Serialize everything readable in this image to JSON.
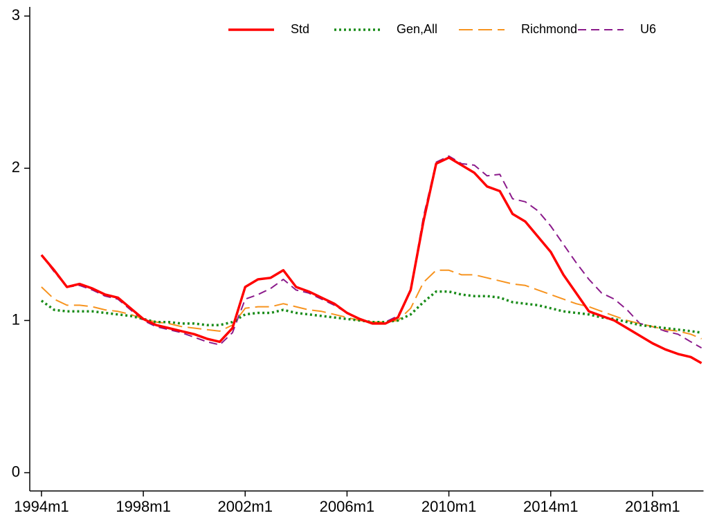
{
  "chart_data": {
    "type": "line",
    "x": [
      1994,
      1994.5,
      1995,
      1995.5,
      1996,
      1996.5,
      1997,
      1997.5,
      1998,
      1998.5,
      1999,
      1999.5,
      2000,
      2000.5,
      2001,
      2001.5,
      2002,
      2002.5,
      2003,
      2003.5,
      2004,
      2004.5,
      2005,
      2005.5,
      2006,
      2006.5,
      2007,
      2007.5,
      2008,
      2008.5,
      2009,
      2009.5,
      2010,
      2010.5,
      2011,
      2011.5,
      2012,
      2012.5,
      2013,
      2013.5,
      2014,
      2014.5,
      2015,
      2015.5,
      2016,
      2016.5,
      2017,
      2017.5,
      2018,
      2018.5,
      2019,
      2019.5,
      2019.92
    ],
    "series": [
      {
        "name": "Std",
        "color": "#ff0000",
        "style": "solid",
        "values": [
          1.43,
          1.33,
          1.22,
          1.24,
          1.21,
          1.17,
          1.15,
          1.08,
          1.01,
          0.97,
          0.95,
          0.93,
          0.91,
          0.88,
          0.86,
          0.95,
          1.22,
          1.27,
          1.28,
          1.33,
          1.22,
          1.19,
          1.15,
          1.11,
          1.05,
          1.01,
          0.98,
          0.98,
          1.02,
          1.2,
          1.65,
          2.03,
          2.07,
          2.02,
          1.97,
          1.88,
          1.85,
          1.7,
          1.65,
          1.55,
          1.45,
          1.3,
          1.18,
          1.06,
          1.03,
          1.0,
          0.95,
          0.9,
          0.85,
          0.81,
          0.78,
          0.76,
          0.72
        ]
      },
      {
        "name": "Gen,All",
        "color": "#1a8c1a",
        "style": "dotted",
        "values": [
          1.13,
          1.07,
          1.06,
          1.06,
          1.06,
          1.05,
          1.04,
          1.03,
          1.01,
          0.99,
          0.99,
          0.98,
          0.98,
          0.97,
          0.97,
          0.99,
          1.04,
          1.05,
          1.05,
          1.07,
          1.05,
          1.04,
          1.03,
          1.02,
          1.01,
          1.0,
          0.99,
          0.99,
          1.0,
          1.04,
          1.12,
          1.19,
          1.19,
          1.17,
          1.16,
          1.16,
          1.15,
          1.12,
          1.11,
          1.1,
          1.08,
          1.06,
          1.05,
          1.04,
          1.02,
          1.01,
          0.99,
          0.97,
          0.96,
          0.95,
          0.94,
          0.93,
          0.92
        ]
      },
      {
        "name": "Richmond",
        "color": "#f7931e",
        "style": "longdash",
        "values": [
          1.22,
          1.14,
          1.1,
          1.1,
          1.09,
          1.07,
          1.06,
          1.04,
          1.01,
          0.99,
          0.98,
          0.96,
          0.95,
          0.94,
          0.93,
          0.97,
          1.08,
          1.09,
          1.09,
          1.11,
          1.09,
          1.07,
          1.06,
          1.04,
          1.02,
          1.0,
          0.99,
          0.99,
          1.0,
          1.08,
          1.25,
          1.33,
          1.33,
          1.3,
          1.3,
          1.28,
          1.26,
          1.24,
          1.23,
          1.2,
          1.17,
          1.14,
          1.11,
          1.09,
          1.06,
          1.03,
          1.0,
          0.98,
          0.96,
          0.94,
          0.93,
          0.91,
          0.88
        ]
      },
      {
        "name": "U6",
        "color": "#8b1a8b",
        "style": "dashed",
        "values": [
          1.43,
          1.32,
          1.22,
          1.23,
          1.2,
          1.16,
          1.14,
          1.07,
          1.0,
          0.96,
          0.94,
          0.92,
          0.89,
          0.86,
          0.84,
          0.92,
          1.14,
          1.17,
          1.21,
          1.27,
          1.2,
          1.18,
          1.14,
          1.1,
          1.05,
          1.01,
          0.98,
          0.99,
          1.03,
          1.2,
          1.68,
          2.04,
          2.08,
          2.03,
          2.02,
          1.95,
          1.96,
          1.8,
          1.78,
          1.72,
          1.62,
          1.5,
          1.38,
          1.27,
          1.18,
          1.14,
          1.07,
          0.98,
          0.96,
          0.93,
          0.91,
          0.86,
          0.82
        ]
      }
    ],
    "xlim": [
      1993.54,
      2020.0
    ],
    "xticks": [
      {
        "value": 1994,
        "label": "1994m1"
      },
      {
        "value": 1998,
        "label": "1998m1"
      },
      {
        "value": 2002,
        "label": "2002m1"
      },
      {
        "value": 2006,
        "label": "2006m1"
      },
      {
        "value": 2010,
        "label": "2010m1"
      },
      {
        "value": 2014,
        "label": "2014m1"
      },
      {
        "value": 2018,
        "label": "2018m1"
      }
    ],
    "ylim": [
      -0.12,
      3.06
    ],
    "yticks": [
      0,
      1,
      2,
      3
    ],
    "legend": "top-right"
  }
}
